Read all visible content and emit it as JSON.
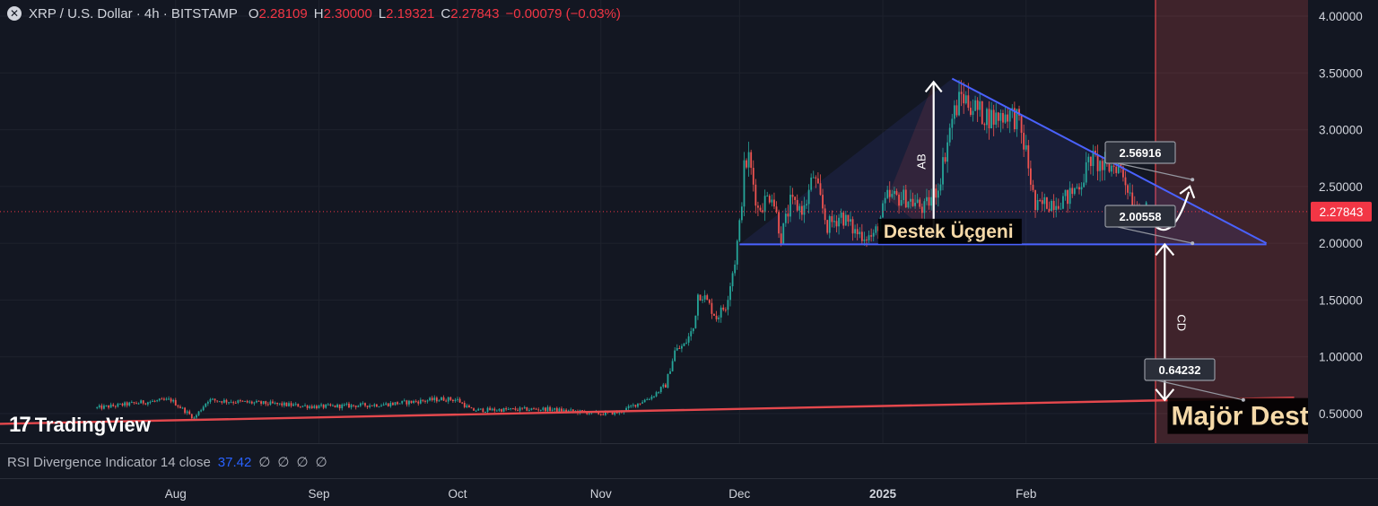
{
  "header": {
    "symbol": "XRP / U.S. Dollar · 4h · BITSTAMP",
    "o_label": "O",
    "o_value": "2.28109",
    "h_label": "H",
    "h_value": "2.30000",
    "l_label": "L",
    "l_value": "2.19321",
    "c_label": "C",
    "c_value": "2.27843",
    "change": "−0.00079 (−0.03%)"
  },
  "branding": {
    "logo_text": "TradingView"
  },
  "rsi": {
    "label": "RSI Divergence Indicator 14 close",
    "value": "37.42",
    "markers": [
      "∅",
      "∅",
      "∅",
      "∅"
    ]
  },
  "colors": {
    "background": "#131722",
    "up": "#26a69a",
    "down": "#ef5350",
    "triangle_line": "#4a62ff",
    "support_line": "#e5484d",
    "price_badge": "#f23645"
  },
  "chart_data": {
    "type": "candlestick",
    "title": "",
    "x_ticks": [
      "Aug",
      "Sep",
      "Oct",
      "Nov",
      "Dec",
      "2025",
      "Feb"
    ],
    "y_ticks": [
      "4.00000",
      "3.50000",
      "3.00000",
      "2.50000",
      "2.00000",
      "1.50000",
      "1.00000",
      "0.50000"
    ],
    "ylim": [
      0.22,
      4.15
    ],
    "current_price": "2.27843",
    "price_path": [
      [
        "2024-07-15",
        0.55
      ],
      [
        "2024-07-25",
        0.6
      ],
      [
        "2024-07-31",
        0.62
      ],
      [
        "2024-08-05",
        0.46
      ],
      [
        "2024-08-08",
        0.62
      ],
      [
        "2024-08-20",
        0.59
      ],
      [
        "2024-09-01",
        0.56
      ],
      [
        "2024-09-15",
        0.58
      ],
      [
        "2024-09-28",
        0.63
      ],
      [
        "2024-10-01",
        0.62
      ],
      [
        "2024-10-04",
        0.53
      ],
      [
        "2024-10-20",
        0.54
      ],
      [
        "2024-11-01",
        0.5
      ],
      [
        "2024-11-05",
        0.51
      ],
      [
        "2024-11-12",
        0.65
      ],
      [
        "2024-11-15",
        0.75
      ],
      [
        "2024-11-17",
        1.05
      ],
      [
        "2024-11-19",
        1.1
      ],
      [
        "2024-11-21",
        1.25
      ],
      [
        "2024-11-22",
        1.55
      ],
      [
        "2024-11-23",
        1.55
      ],
      [
        "2024-11-26",
        1.35
      ],
      [
        "2024-11-28",
        1.45
      ],
      [
        "2024-11-30",
        1.85
      ],
      [
        "2024-12-01",
        2.15
      ],
      [
        "2024-12-02",
        2.65
      ],
      [
        "2024-12-03",
        2.75
      ],
      [
        "2024-12-05",
        2.3
      ],
      [
        "2024-12-08",
        2.45
      ],
      [
        "2024-12-10",
        2.05
      ],
      [
        "2024-12-12",
        2.35
      ],
      [
        "2024-12-15",
        2.3
      ],
      [
        "2024-12-17",
        2.6
      ],
      [
        "2024-12-20",
        2.15
      ],
      [
        "2024-12-23",
        2.25
      ],
      [
        "2024-12-26",
        2.1
      ],
      [
        "2024-12-30",
        2.05
      ],
      [
        "2025-01-02",
        2.4
      ],
      [
        "2025-01-06",
        2.4
      ],
      [
        "2025-01-10",
        2.3
      ],
      [
        "2025-01-13",
        2.5
      ],
      [
        "2025-01-16",
        3.1
      ],
      [
        "2025-01-18",
        3.3
      ],
      [
        "2025-01-22",
        3.15
      ],
      [
        "2025-01-25",
        3.1
      ],
      [
        "2025-01-28",
        3.15
      ],
      [
        "2025-01-30",
        3.1
      ],
      [
        "2025-02-01",
        2.8
      ],
      [
        "2025-02-03",
        2.3
      ],
      [
        "2025-02-05",
        2.35
      ],
      [
        "2025-02-10",
        2.4
      ],
      [
        "2025-02-13",
        2.55
      ],
      [
        "2025-02-15",
        2.75
      ],
      [
        "2025-02-18",
        2.65
      ],
      [
        "2025-02-21",
        2.7
      ],
      [
        "2025-02-25",
        2.3
      ],
      [
        "2025-02-27",
        2.28
      ]
    ],
    "annotations": {
      "triangle_label": "Destek Üçgeni",
      "major_support_label": "Majör Destek",
      "ab_label": "AB",
      "cd_label": "CD",
      "target_1": "2.56916",
      "target_2": "2.00558",
      "target_3": "0.64232",
      "triangle_top": [
        [
          "2025-01-16",
          3.45
        ],
        [
          "2025-03-25",
          2.0
        ]
      ],
      "triangle_base": [
        [
          "2024-12-01",
          1.99
        ],
        [
          "2025-03-25",
          1.99
        ]
      ],
      "major_support": [
        [
          "2024-07-15",
          0.41
        ],
        [
          "2025-03-31",
          0.64
        ]
      ],
      "projection_start": "2025-03-01"
    }
  }
}
